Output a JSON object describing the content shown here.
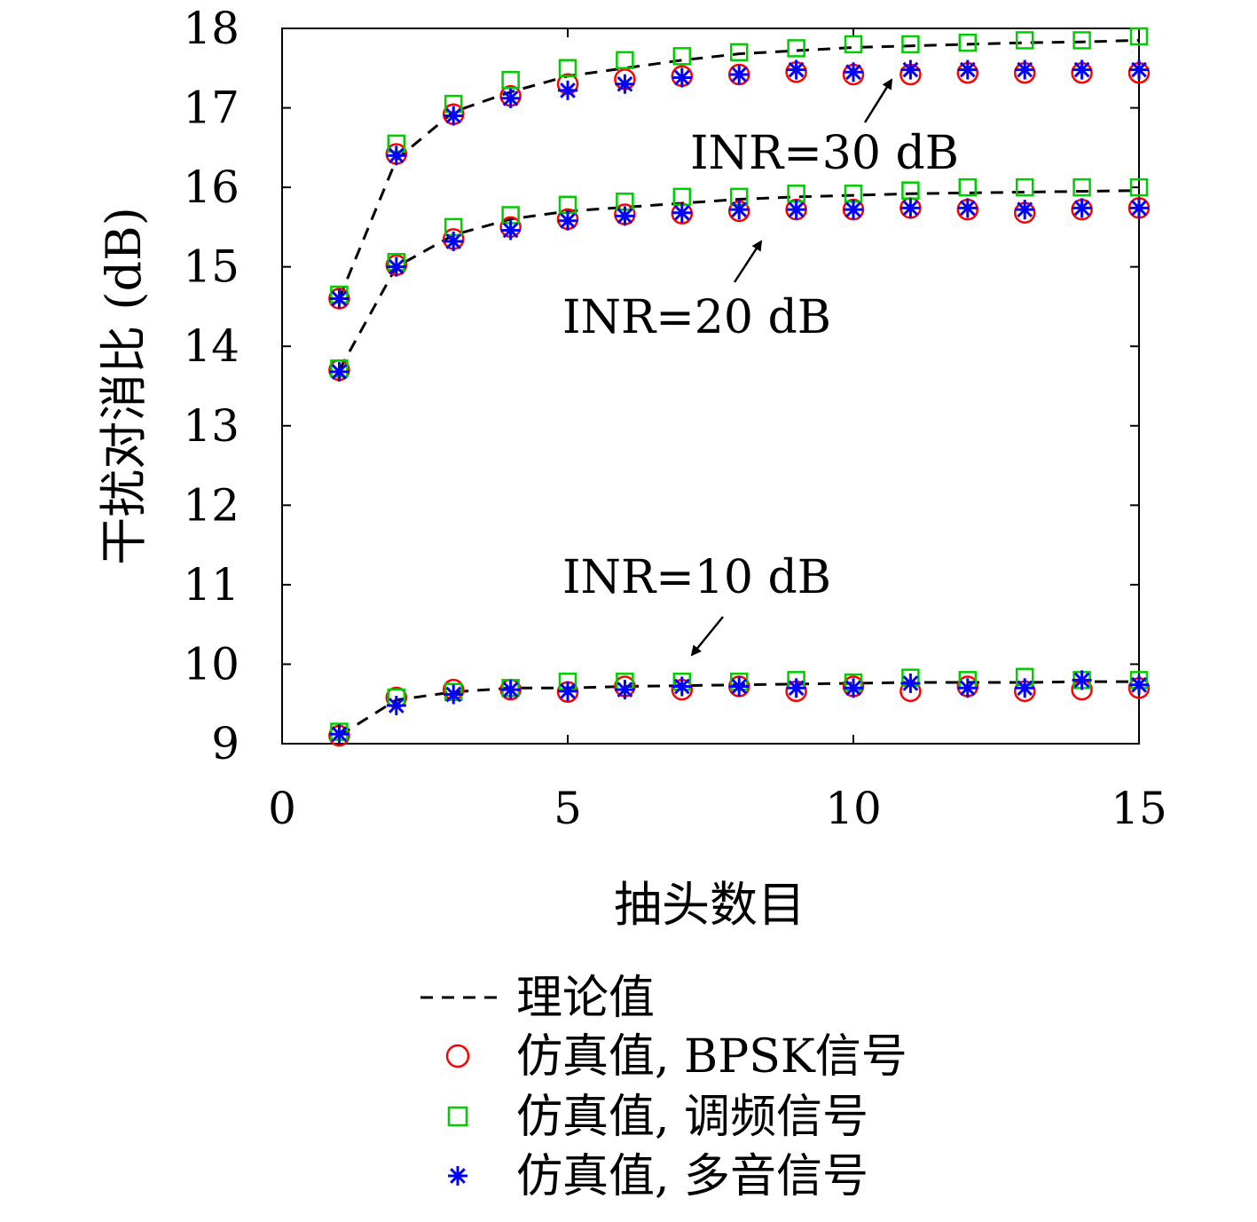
{
  "chart_data": {
    "type": "scatter",
    "xlabel": "抽头数目",
    "ylabel": "干扰对消比 (dB)",
    "xlim": [
      0,
      15
    ],
    "ylim": [
      9,
      18
    ],
    "xticks": [
      0,
      5,
      10,
      15
    ],
    "yticks": [
      9,
      10,
      11,
      12,
      13,
      14,
      15,
      16,
      17,
      18
    ],
    "grid": false,
    "legend_position": "bottom",
    "x": [
      1,
      2,
      3,
      4,
      5,
      6,
      7,
      8,
      9,
      10,
      11,
      12,
      13,
      14,
      15
    ],
    "groups": [
      {
        "annotation": "INR=10 dB",
        "theory": [
          9.1,
          9.55,
          9.65,
          9.7,
          9.7,
          9.72,
          9.73,
          9.74,
          9.75,
          9.76,
          9.77,
          9.77,
          9.77,
          9.78,
          9.78
        ],
        "bpsk": [
          9.1,
          9.58,
          9.68,
          9.68,
          9.65,
          9.72,
          9.68,
          9.72,
          9.66,
          9.72,
          9.66,
          9.72,
          9.66,
          9.68,
          9.7
        ],
        "fm": [
          9.15,
          9.58,
          9.65,
          9.7,
          9.78,
          9.78,
          9.78,
          9.78,
          9.8,
          9.77,
          9.83,
          9.8,
          9.84,
          9.8,
          9.8
        ],
        "tone": [
          9.12,
          9.48,
          9.62,
          9.68,
          9.66,
          9.68,
          9.72,
          9.72,
          9.7,
          9.7,
          9.76,
          9.7,
          9.7,
          9.8,
          9.74
        ]
      },
      {
        "annotation": "INR=20 dB",
        "theory": [
          13.7,
          15.0,
          15.4,
          15.6,
          15.7,
          15.75,
          15.8,
          15.85,
          15.88,
          15.9,
          15.92,
          15.93,
          15.94,
          15.95,
          15.96
        ],
        "bpsk": [
          13.7,
          15.02,
          15.35,
          15.5,
          15.6,
          15.66,
          15.67,
          15.7,
          15.72,
          15.72,
          15.74,
          15.72,
          15.68,
          15.72,
          15.74
        ],
        "fm": [
          13.72,
          15.06,
          15.5,
          15.65,
          15.78,
          15.82,
          15.88,
          15.88,
          15.92,
          15.92,
          15.96,
          16.0,
          16.0,
          16.0,
          16.0
        ],
        "tone": [
          13.68,
          15.0,
          15.32,
          15.46,
          15.58,
          15.64,
          15.68,
          15.72,
          15.72,
          15.72,
          15.74,
          15.74,
          15.72,
          15.74,
          15.74
        ]
      },
      {
        "annotation": "INR=30 dB",
        "theory": [
          14.6,
          16.35,
          16.95,
          17.2,
          17.4,
          17.5,
          17.6,
          17.68,
          17.72,
          17.76,
          17.78,
          17.8,
          17.82,
          17.83,
          17.85
        ],
        "bpsk": [
          14.6,
          16.42,
          16.92,
          17.15,
          17.3,
          17.36,
          17.4,
          17.42,
          17.45,
          17.42,
          17.42,
          17.44,
          17.44,
          17.44,
          17.44
        ],
        "fm": [
          14.65,
          16.55,
          17.05,
          17.35,
          17.5,
          17.6,
          17.65,
          17.7,
          17.75,
          17.8,
          17.8,
          17.82,
          17.85,
          17.85,
          17.9
        ],
        "tone": [
          14.6,
          16.4,
          16.9,
          17.12,
          17.22,
          17.3,
          17.38,
          17.42,
          17.48,
          17.45,
          17.48,
          17.48,
          17.48,
          17.48,
          17.48
        ]
      }
    ],
    "annotations": [
      {
        "text": "INR=30 dB",
        "x": 10.7,
        "y": 17.3
      },
      {
        "text": "INR=20 dB",
        "x": 8.4,
        "y": 15.4
      },
      {
        "text": "INR=10 dB",
        "x": 7.0,
        "y": 10.1
      }
    ],
    "legend": [
      {
        "marker": "dashed",
        "label": "理论值",
        "color": "#000000"
      },
      {
        "marker": "circle",
        "label": "仿真值, BPSK信号",
        "color": "#ff0000"
      },
      {
        "marker": "square",
        "label": "仿真值, 调频信号",
        "color": "#00cc00"
      },
      {
        "marker": "star",
        "label": "仿真值, 多音信号",
        "color": "#0000ff"
      }
    ]
  }
}
